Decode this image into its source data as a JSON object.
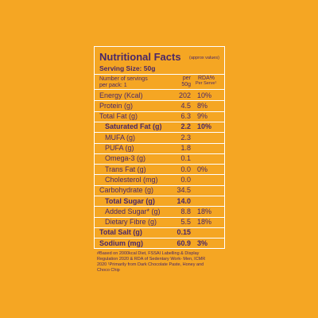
{
  "panel": {
    "title": "Nutritional Facts",
    "title_note": "(approx values)",
    "serving_size": "Serving Size: 50g",
    "servings_lines": [
      "Number of servings",
      "per pack: 1"
    ],
    "col_per": [
      "per",
      "50g"
    ],
    "col_rda": [
      "RDA%",
      "Per Serve¹"
    ],
    "rows": [
      {
        "label": "Energy (Kcal)",
        "per": "202",
        "rda": "10%",
        "bold": false,
        "indent": 0
      },
      {
        "label": "Protein (g)",
        "per": "4.5",
        "rda": "8%",
        "bold": false,
        "indent": 0
      },
      {
        "label": "Total Fat (g)",
        "per": "6.3",
        "rda": "9%",
        "bold": false,
        "indent": 0
      },
      {
        "label": "Saturated Fat (g)",
        "per": "2.2",
        "rda": "10%",
        "bold": true,
        "indent": 1
      },
      {
        "label": "MUFA (g)",
        "per": "2.3",
        "rda": null,
        "bold": false,
        "indent": 1
      },
      {
        "label": "PUFA (g)",
        "per": "1.8",
        "rda": null,
        "bold": false,
        "indent": 1
      },
      {
        "label": "Omega-3 (g)",
        "per": "0.1",
        "rda": null,
        "bold": false,
        "indent": 1
      },
      {
        "label": "Trans Fat (g)",
        "per": "0.0",
        "rda": "0%",
        "bold": false,
        "indent": 1
      },
      {
        "label": "Cholesterol (mg)",
        "per": "0.0",
        "rda": null,
        "bold": false,
        "indent": 1
      },
      {
        "label": "Carbohydrate (g)",
        "per": "34.5",
        "rda": null,
        "bold": false,
        "indent": 0
      },
      {
        "label": "Total Sugar (g)",
        "per": "14.0",
        "rda": null,
        "bold": true,
        "indent": 1
      },
      {
        "label": "Added Sugar* (g)",
        "per": "8.8",
        "rda": "18%",
        "bold": false,
        "indent": 1
      },
      {
        "label": "Dietary Fibre (g)",
        "per": "5.5",
        "rda": "18%",
        "bold": false,
        "indent": 1
      },
      {
        "label": "Total Salt (g)",
        "per": "0.15",
        "rda": null,
        "bold": true,
        "indent": 0
      },
      {
        "label": "Sodium (mg)",
        "per": "60.9",
        "rda": "3%",
        "bold": true,
        "indent": 0
      }
    ],
    "footnote_lines": [
      "#Based on 2000kcal Diet, FSSAI Labelling & Display",
      "Regulation 2020 & RDA of Sedentary Work- Men, ICMR",
      "2020 ¹Primarily from Dark Chocolate Paste, Honey and",
      "Choco Chip"
    ]
  }
}
